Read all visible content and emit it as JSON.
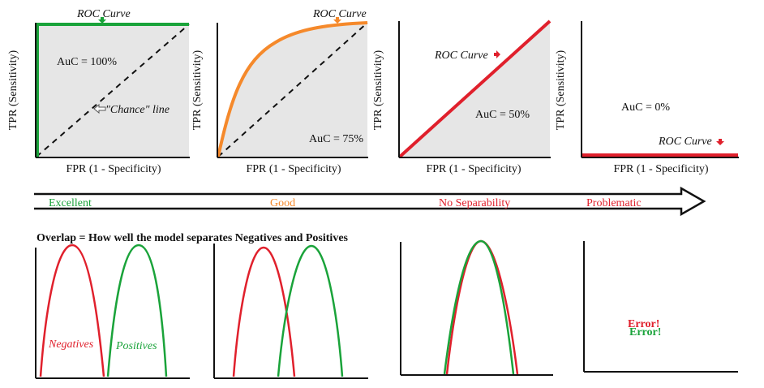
{
  "roc_panels": [
    {
      "curve_label": "ROC Curve",
      "auc_text": "AuC = 100%",
      "chance_label": "\"Chance\" line",
      "xlabel": "FPR (1 - Specificity)",
      "ylabel": "TPR (Sensitivity)"
    },
    {
      "curve_label": "ROC Curve",
      "auc_text": "AuC = 75%",
      "xlabel": "FPR (1 - Specificity)",
      "ylabel": "TPR (Sensitivity)"
    },
    {
      "curve_label": "ROC Curve",
      "auc_text": "AuC = 50%",
      "xlabel": "FPR (1 - Specificity)",
      "ylabel": "TPR (Sensitivity)"
    },
    {
      "curve_label": "ROC Curve",
      "auc_text": "AuC = 0%",
      "xlabel": "FPR (1 - Specificity)",
      "ylabel": "TPR (Sensitivity)"
    }
  ],
  "scale": {
    "labels": [
      "Excellent",
      "Good",
      "No Separability",
      "Problematic"
    ]
  },
  "overlap": {
    "title": "Overlap = How well the model separates Negatives and Positives",
    "negatives_label": "Negatives",
    "positives_label": "Positives",
    "error_label_1": "Error!",
    "error_label_2": "Error!"
  },
  "colors": {
    "green": "#1aa33a",
    "orange": "#f5892b",
    "red": "#e0202c",
    "fill": "#e6e6e6",
    "excellent": "#1aa33a",
    "good": "#f5892b",
    "no_sep": "#e0202c",
    "problematic": "#e0202c"
  }
}
